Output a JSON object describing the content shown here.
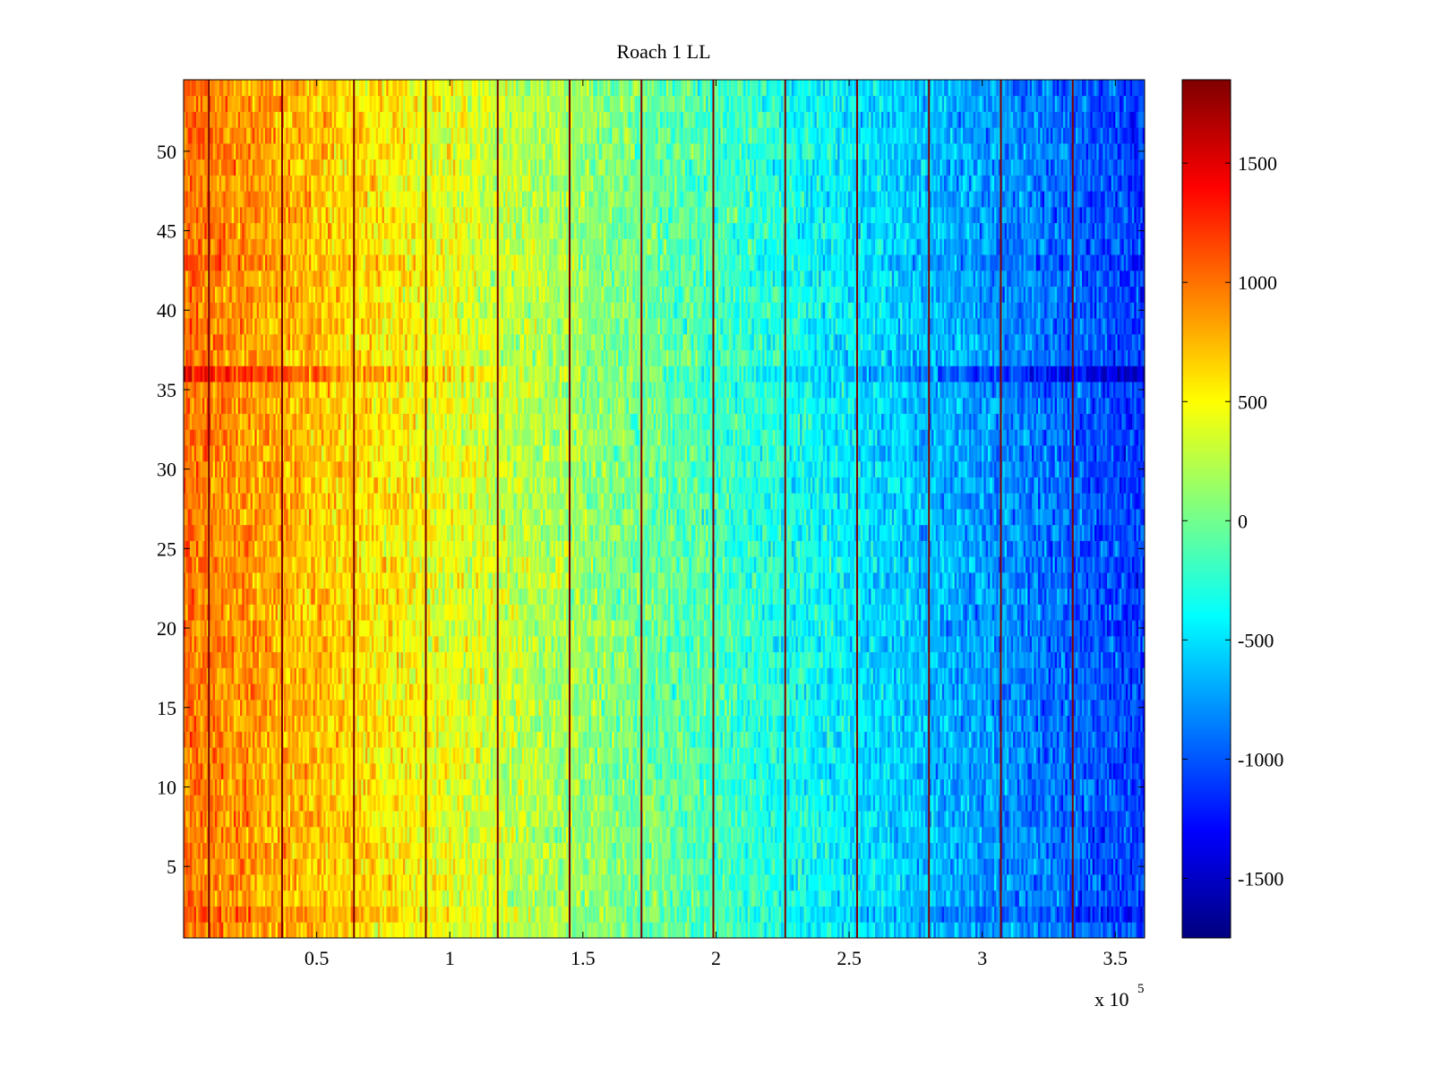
{
  "chart_data": {
    "type": "heatmap",
    "title": "Roach 1 LL",
    "xlabel": "",
    "ylabel": "",
    "x_exponent_label": {
      "base": "x 10",
      "exponent": "5"
    },
    "x_range": [
      0,
      3.61
    ],
    "y_range": [
      0.5,
      54.5
    ],
    "rows": 54,
    "x_ticks": [
      0.5,
      1,
      1.5,
      2,
      2.5,
      3,
      3.5
    ],
    "x_tick_labels": [
      "0.5",
      "1",
      "1.5",
      "2",
      "2.5",
      "3",
      "3.5"
    ],
    "y_ticks": [
      5,
      10,
      15,
      20,
      25,
      30,
      35,
      40,
      45,
      50
    ],
    "y_tick_labels": [
      "5",
      "10",
      "15",
      "20",
      "25",
      "30",
      "35",
      "40",
      "45",
      "50"
    ],
    "colormap": "jet",
    "color_range": [
      -1750,
      1850
    ],
    "colorbar_ticks": [
      1500,
      1000,
      500,
      0,
      -500,
      -1000,
      -1500
    ],
    "colorbar_tick_labels": [
      "1500",
      "1000",
      "500",
      "0",
      "-500",
      "-1000",
      "-1500"
    ],
    "trend": {
      "description": "values decrease roughly linearly from left to right",
      "value_at_x_start": 1000,
      "value_at_x_end": -1100,
      "noise_amplitude": 350
    },
    "highlight_rows": [
      {
        "row": 36,
        "offset": 400
      },
      {
        "row": 2,
        "offset": 180
      },
      {
        "row": 43,
        "offset": 120
      }
    ],
    "vertical_lines_x": [
      0.095,
      0.37,
      0.64,
      0.91,
      1.18,
      1.45,
      1.72,
      1.99,
      2.26,
      2.53,
      2.8,
      3.07,
      3.34
    ],
    "grid": false
  }
}
